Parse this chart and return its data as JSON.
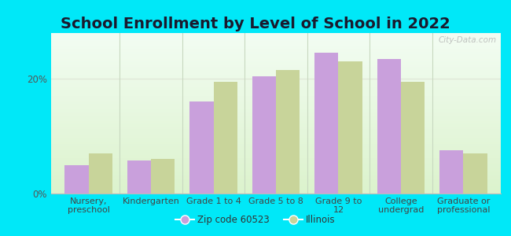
{
  "title": "School Enrollment by Level of School in 2022",
  "categories": [
    "Nursery,\npreschool",
    "Kindergarten",
    "Grade 1 to 4",
    "Grade 5 to 8",
    "Grade 9 to\n12",
    "College\nundergrad",
    "Graduate or\nprofessional"
  ],
  "zip_values": [
    5.0,
    5.8,
    16.0,
    20.5,
    24.5,
    23.5,
    7.5
  ],
  "illinois_values": [
    7.0,
    6.0,
    19.5,
    21.5,
    23.0,
    19.5,
    7.0
  ],
  "zip_color": "#c9a0dc",
  "illinois_color": "#c8d49a",
  "background_outer": "#00e8f8",
  "ylim": [
    0,
    28
  ],
  "yticks": [
    0,
    20
  ],
  "ytick_labels": [
    "0%",
    "20%"
  ],
  "legend_zip_label": "Zip code 60523",
  "legend_illinois_label": "Illinois",
  "bar_width": 0.38,
  "watermark": "City-Data.com",
  "title_fontsize": 14,
  "tick_fontsize": 8,
  "grid_color": "#e0e8d8",
  "separator_color": "#c8d8c0"
}
